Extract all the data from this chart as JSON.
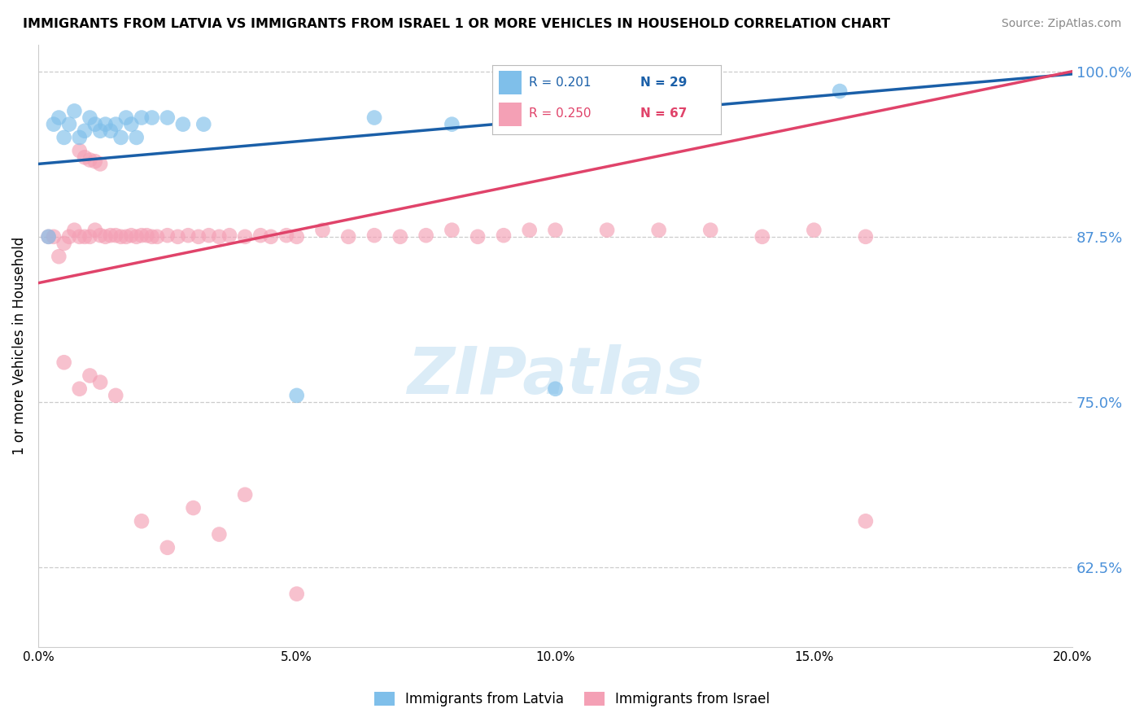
{
  "title": "IMMIGRANTS FROM LATVIA VS IMMIGRANTS FROM ISRAEL 1 OR MORE VEHICLES IN HOUSEHOLD CORRELATION CHART",
  "source": "Source: ZipAtlas.com",
  "ylabel_label": "1 or more Vehicles in Household",
  "legend_blue_r": "R = 0.201",
  "legend_blue_n": "N = 29",
  "legend_pink_r": "R = 0.250",
  "legend_pink_n": "N = 67",
  "legend_blue_label": "Immigrants from Latvia",
  "legend_pink_label": "Immigrants from Israel",
  "blue_color": "#7fbfea",
  "pink_color": "#f4a0b5",
  "blue_line_color": "#1a5fa8",
  "pink_line_color": "#e0436a",
  "watermark_color": "#cce5f5",
  "blue_x": [
    0.002,
    0.003,
    0.004,
    0.005,
    0.006,
    0.007,
    0.008,
    0.009,
    0.01,
    0.011,
    0.012,
    0.013,
    0.014,
    0.015,
    0.016,
    0.017,
    0.018,
    0.019,
    0.02,
    0.022,
    0.025,
    0.028,
    0.032,
    0.05,
    0.065,
    0.08,
    0.1,
    0.13,
    0.155
  ],
  "blue_y": [
    0.875,
    0.96,
    0.965,
    0.95,
    0.96,
    0.97,
    0.95,
    0.955,
    0.965,
    0.96,
    0.955,
    0.96,
    0.955,
    0.96,
    0.95,
    0.965,
    0.96,
    0.95,
    0.965,
    0.965,
    0.965,
    0.96,
    0.96,
    0.755,
    0.965,
    0.96,
    0.76,
    0.965,
    0.985
  ],
  "pink_x": [
    0.002,
    0.003,
    0.004,
    0.005,
    0.006,
    0.007,
    0.008,
    0.008,
    0.009,
    0.009,
    0.01,
    0.01,
    0.011,
    0.011,
    0.012,
    0.012,
    0.013,
    0.014,
    0.015,
    0.016,
    0.017,
    0.018,
    0.019,
    0.02,
    0.021,
    0.022,
    0.023,
    0.025,
    0.027,
    0.029,
    0.031,
    0.033,
    0.035,
    0.037,
    0.04,
    0.043,
    0.045,
    0.048,
    0.05,
    0.055,
    0.06,
    0.065,
    0.07,
    0.075,
    0.08,
    0.085,
    0.09,
    0.095,
    0.1,
    0.11,
    0.12,
    0.13,
    0.14,
    0.15,
    0.16,
    0.005,
    0.008,
    0.01,
    0.012,
    0.015,
    0.02,
    0.025,
    0.03,
    0.035,
    0.04,
    0.05,
    0.16
  ],
  "pink_y": [
    0.875,
    0.875,
    0.86,
    0.87,
    0.875,
    0.88,
    0.875,
    0.94,
    0.875,
    0.935,
    0.875,
    0.933,
    0.88,
    0.932,
    0.876,
    0.93,
    0.875,
    0.876,
    0.876,
    0.875,
    0.875,
    0.876,
    0.875,
    0.876,
    0.876,
    0.875,
    0.875,
    0.876,
    0.875,
    0.876,
    0.875,
    0.876,
    0.875,
    0.876,
    0.875,
    0.876,
    0.875,
    0.876,
    0.875,
    0.88,
    0.875,
    0.876,
    0.875,
    0.876,
    0.88,
    0.875,
    0.876,
    0.88,
    0.88,
    0.88,
    0.88,
    0.88,
    0.875,
    0.88,
    0.875,
    0.78,
    0.76,
    0.77,
    0.765,
    0.755,
    0.66,
    0.64,
    0.67,
    0.65,
    0.68,
    0.605,
    0.66
  ],
  "blue_line_x0": 0.0,
  "blue_line_y0": 0.93,
  "blue_line_x1": 0.2,
  "blue_line_y1": 0.998,
  "pink_line_x0": 0.0,
  "pink_line_y0": 0.84,
  "pink_line_x1": 0.2,
  "pink_line_y1": 1.0,
  "xlim": [
    0.0,
    0.2
  ],
  "ylim": [
    0.565,
    1.02
  ],
  "yticks": [
    0.625,
    0.75,
    0.875,
    1.0
  ],
  "ytick_labels": [
    "62.5%",
    "75.0%",
    "87.5%",
    "100.0%"
  ],
  "xticks": [
    0.0,
    0.05,
    0.1,
    0.15,
    0.2
  ],
  "xtick_labels": [
    "0.0%",
    "5.0%",
    "10.0%",
    "15.0%",
    "20.0%"
  ]
}
